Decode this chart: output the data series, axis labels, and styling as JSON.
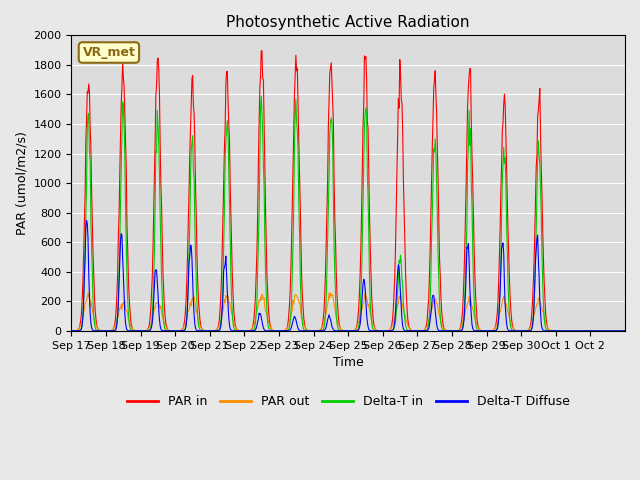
{
  "title": "Photosynthetic Active Radiation",
  "xlabel": "Time",
  "ylabel": "PAR (umol/m2/s)",
  "ylim": [
    0,
    2000
  ],
  "background_color": "#e8e8e8",
  "plot_bg_color": "#dcdcdc",
  "annotation_text": "VR_met",
  "annotation_bg": "#ffffcc",
  "annotation_border": "#8b6914",
  "tick_labels": [
    "Sep 17",
    "Sep 18",
    "Sep 19",
    "Sep 20",
    "Sep 21",
    "Sep 22",
    "Sep 23",
    "Sep 24",
    "Sep 25",
    "Sep 26",
    "Sep 27",
    "Sep 28",
    "Sep 29",
    "Sep 30",
    "Oct 1",
    "Oct 2"
  ],
  "legend_labels": [
    "PAR in",
    "PAR out",
    "Delta-T in",
    "Delta-T Diffuse"
  ],
  "line_colors": [
    "#ff0000",
    "#ff8c00",
    "#00cc00",
    "#0000ff"
  ],
  "num_days": 16,
  "par_in_peaks": [
    1720,
    1780,
    1850,
    1690,
    1750,
    1910,
    1900,
    1860,
    1870,
    1800,
    1730,
    1780,
    1570,
    1560,
    0,
    0
  ],
  "par_out_peaks": [
    230,
    200,
    200,
    220,
    230,
    240,
    240,
    240,
    230,
    220,
    200,
    210,
    210,
    210,
    0,
    0
  ],
  "delta_t_in_peaks": [
    1420,
    1470,
    1460,
    1310,
    1390,
    1530,
    1530,
    1510,
    1510,
    490,
    1370,
    1440,
    1260,
    1250,
    0,
    0
  ],
  "delta_t_diff_peaks": [
    730,
    670,
    430,
    630,
    520,
    120,
    100,
    100,
    340,
    450,
    260,
    600,
    590,
    660,
    0,
    0
  ]
}
